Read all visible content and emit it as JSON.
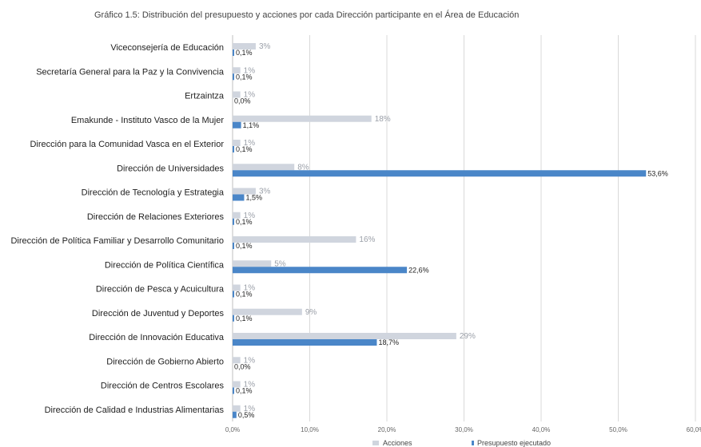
{
  "colors": {
    "acciones": "#d0d5de",
    "presupuesto": "#4a86c8",
    "grid": "#d9d9d9"
  },
  "chart_data": {
    "type": "bar",
    "orientation": "horizontal",
    "title": "Gráfico 1.5: Distribución del presupuesto y acciones por cada Dirección participante en el Área de Educación",
    "categories": [
      "Viceconsejería de Educación",
      "Secretaría General para la Paz y la Convivencia",
      "Ertzaintza",
      "Emakunde - Instituto Vasco de la Mujer",
      "Dirección para la Comunidad Vasca en el Exterior",
      "Dirección de Universidades",
      "Dirección de Tecnología y Estrategia",
      "Dirección de Relaciones Exteriores",
      "Dirección de Política Familiar y Desarrollo Comunitario",
      "Dirección de Política Científica",
      "Dirección de Pesca y Acuicultura",
      "Dirección de Juventud y Deportes",
      "Dirección de Innovación Educativa",
      "Dirección de Gobierno Abierto",
      "Dirección de Centros Escolares",
      "Dirección de Calidad e Industrias Alimentarias"
    ],
    "series": [
      {
        "name": "Acciones",
        "values": [
          3,
          1,
          1,
          18,
          1,
          8,
          3,
          1,
          16,
          5,
          1,
          9,
          29,
          1,
          1,
          1
        ],
        "labels": [
          "3%",
          "1%",
          "1%",
          "18%",
          "1%",
          "8%",
          "3%",
          "1%",
          "16%",
          "5%",
          "1%",
          "9%",
          "29%",
          "1%",
          "1%",
          "1%"
        ]
      },
      {
        "name": "Presupuesto ejecutado",
        "values": [
          0.1,
          0.1,
          0.0,
          1.1,
          0.1,
          53.6,
          1.5,
          0.1,
          0.1,
          22.6,
          0.1,
          0.1,
          18.7,
          0.0,
          0.1,
          0.5
        ],
        "labels": [
          "0,1%",
          "0,1%",
          "0,0%",
          "1,1%",
          "0,1%",
          "53,6%",
          "1,5%",
          "0,1%",
          "0,1%",
          "22,6%",
          "0,1%",
          "0,1%",
          "18,7%",
          "0,0%",
          "0,1%",
          "0,5%"
        ]
      }
    ],
    "xlim": [
      0,
      60
    ],
    "xticks": [
      "0,0%",
      "10,0%",
      "20,0%",
      "30,0%",
      "40,0%",
      "50,0%",
      "60,0%"
    ],
    "grid": true,
    "legend_position": "bottom"
  }
}
